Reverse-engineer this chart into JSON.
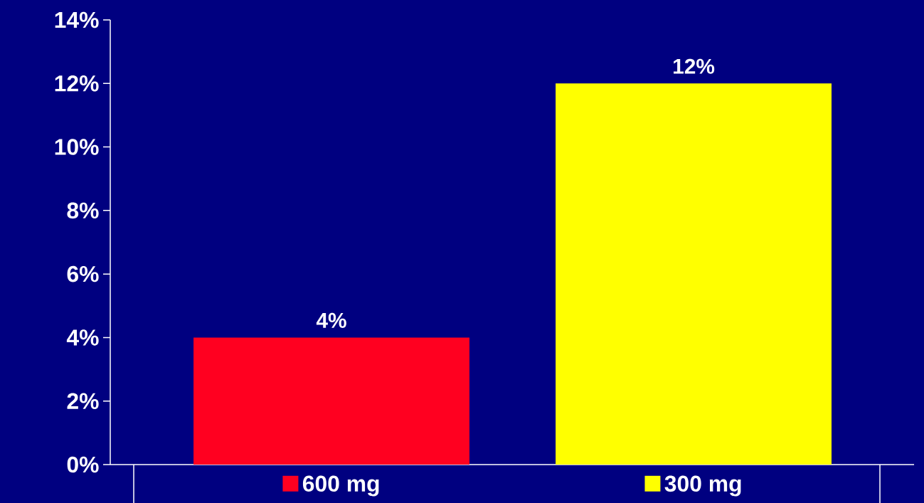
{
  "chart_data": {
    "type": "bar",
    "categories": [
      "600 mg",
      "300 mg"
    ],
    "values": [
      4,
      12
    ],
    "colors": [
      "#ff0020",
      "#ffff00"
    ],
    "value_labels": [
      "4%",
      "12%"
    ],
    "ylim": [
      0,
      14
    ],
    "yticks": [
      {
        "value": 0,
        "label": "0%"
      },
      {
        "value": 2,
        "label": "2%"
      },
      {
        "value": 4,
        "label": "4%"
      },
      {
        "value": 6,
        "label": "6%"
      },
      {
        "value": 8,
        "label": "8%"
      },
      {
        "value": 10,
        "label": "10%"
      },
      {
        "value": 12,
        "label": "12%"
      },
      {
        "value": 14,
        "label": "14%"
      }
    ],
    "grid": false
  }
}
